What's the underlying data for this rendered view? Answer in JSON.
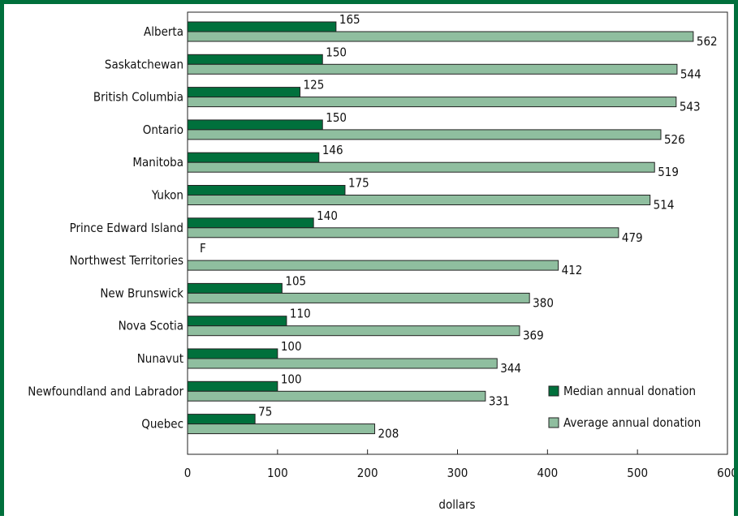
{
  "chart_data": {
    "type": "bar",
    "orientation": "horizontal",
    "categories": [
      "Alberta",
      "Saskatchewan",
      "British Columbia",
      "Ontario",
      "Manitoba",
      "Yukon",
      "Prince Edward Island",
      "Northwest Territories",
      "New Brunswick",
      "Nova Scotia",
      "Nunavut",
      "Newfoundland and Labrador",
      "Quebec"
    ],
    "series": [
      {
        "name": "Median annual donation",
        "values": [
          165,
          150,
          125,
          150,
          146,
          175,
          140,
          null,
          105,
          110,
          100,
          100,
          75
        ],
        "labels": [
          "165",
          "150",
          "125",
          "150",
          "146",
          "175",
          "140",
          "F",
          "105",
          "110",
          "100",
          "100",
          "75"
        ],
        "color": "#00703c"
      },
      {
        "name": "Average annual donation",
        "values": [
          562,
          544,
          543,
          526,
          519,
          514,
          479,
          412,
          380,
          369,
          344,
          331,
          208
        ],
        "labels": [
          "562",
          "544",
          "543",
          "526",
          "519",
          "514",
          "479",
          "412",
          "380",
          "369",
          "344",
          "331",
          "208"
        ],
        "color": "#8fbe9f"
      }
    ],
    "xlim": [
      0,
      600
    ],
    "xticks": [
      "0",
      "100",
      "200",
      "300",
      "400",
      "500",
      "600"
    ],
    "xlabel": "dollars",
    "ylabel": "",
    "grid": false,
    "legend": "bottom-right"
  }
}
